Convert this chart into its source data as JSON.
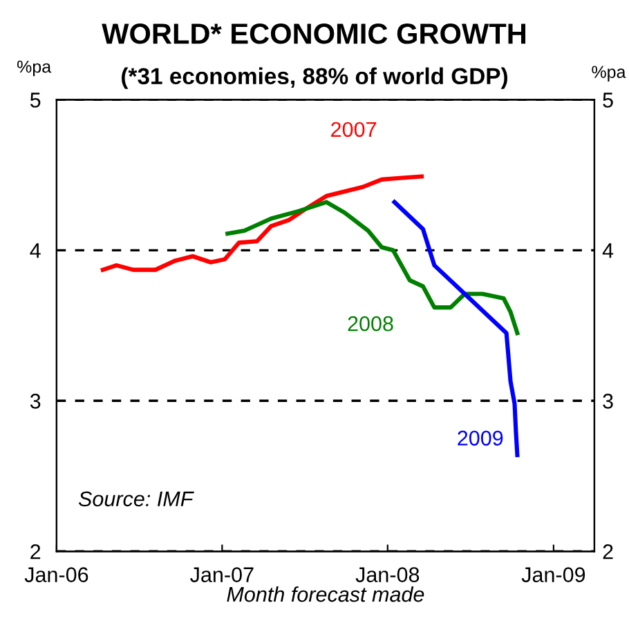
{
  "chart_data": {
    "type": "line",
    "title": "WORLD* ECONOMIC GROWTH",
    "subtitle": "(*31 economies, 88% of world GDP)",
    "xlabel": "Month forecast made",
    "ylabel": "%pa",
    "y2label": "%pa",
    "series": [
      {
        "name": "2007",
        "color": "#ff0000",
        "x": [
          "2006-04-13",
          "2006-05-13",
          "2006-06-19",
          "2006-08-07",
          "2006-09-19",
          "2006-10-28",
          "2006-12-07",
          "2007-01-07",
          "2007-02-07",
          "2007-03-19",
          "2007-04-19",
          "2007-05-28",
          "2007-07-07",
          "2007-08-19",
          "2007-09-28",
          "2007-11-07",
          "2007-12-19",
          "2008-01-28",
          "2008-03-16"
        ],
        "values": [
          3.87,
          3.9,
          3.87,
          3.87,
          3.93,
          3.96,
          3.92,
          3.94,
          4.05,
          4.06,
          4.16,
          4.2,
          4.28,
          4.36,
          4.39,
          4.42,
          4.47,
          4.48,
          4.49
        ]
      },
      {
        "name": "2008",
        "color": "#008000",
        "x": [
          "2007-01-13",
          "2007-02-19",
          "2007-04-19",
          "2007-06-19",
          "2007-08-19",
          "2007-09-28",
          "2007-11-19",
          "2007-12-19",
          "2008-01-13",
          "2008-02-19",
          "2008-03-19",
          "2008-04-13",
          "2008-05-19",
          "2008-06-19",
          "2008-07-28",
          "2008-09-13",
          "2008-09-28",
          "2008-10-13"
        ],
        "values": [
          4.11,
          4.13,
          4.21,
          4.26,
          4.32,
          4.25,
          4.13,
          4.02,
          4.0,
          3.8,
          3.76,
          3.62,
          3.62,
          3.71,
          3.71,
          3.68,
          3.59,
          3.45
        ]
      },
      {
        "name": "2009",
        "color": "#0000ff",
        "x": [
          "2008-01-16",
          "2008-03-19",
          "2008-04-13",
          "2008-06-19",
          "2008-09-19",
          "2008-09-28",
          "2008-10-07",
          "2008-10-10",
          "2008-10-13"
        ],
        "values": [
          4.32,
          4.14,
          3.9,
          3.71,
          3.45,
          3.13,
          2.98,
          2.79,
          2.64
        ]
      }
    ],
    "xlim": [
      "2006-01-01",
      "2009-04-01"
    ],
    "xticks": [
      {
        "value": "2006-01-01",
        "label": "Jan-06"
      },
      {
        "value": "2007-01-01",
        "label": "Jan-07"
      },
      {
        "value": "2008-01-01",
        "label": "Jan-08"
      },
      {
        "value": "2009-01-01",
        "label": "Jan-09"
      }
    ],
    "ylim": [
      2,
      5
    ],
    "yticks": [
      2,
      3,
      4,
      5
    ],
    "y2lim": [
      2,
      5
    ],
    "y2ticks": [
      2,
      3,
      4,
      5
    ],
    "grid": "y",
    "line_style": "solid",
    "legend": false,
    "annotations": [
      "Source: IMF"
    ]
  }
}
